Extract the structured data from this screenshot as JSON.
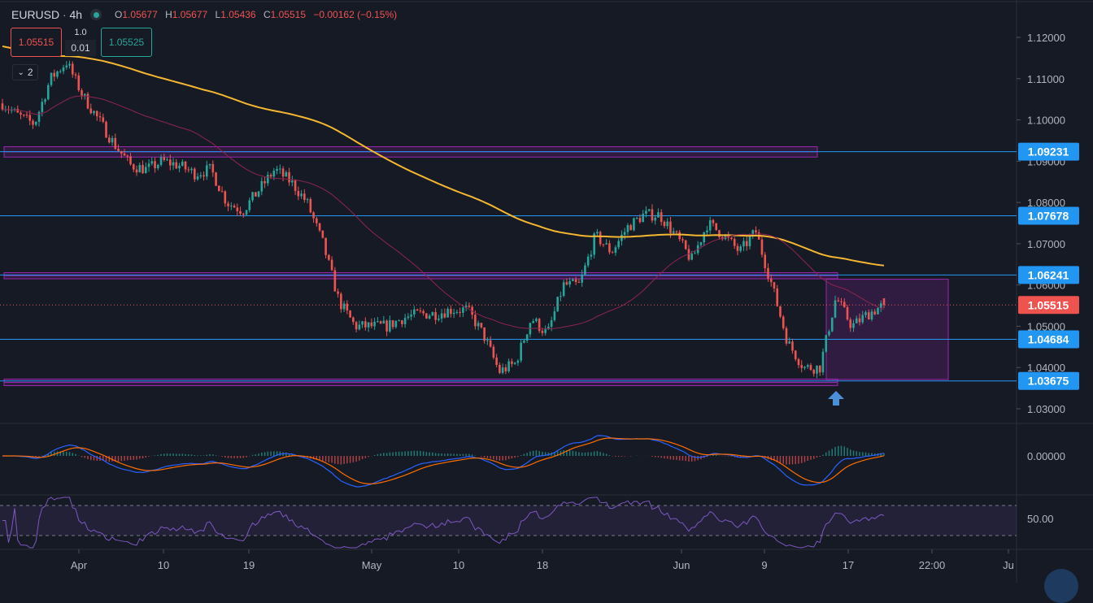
{
  "header": {
    "symbol": "EURUSD",
    "separator": "·",
    "interval": "4h",
    "market_status": "open",
    "ohlc": {
      "o_label": "O",
      "o": "1.05677",
      "h_label": "H",
      "h": "1.05677",
      "l_label": "L",
      "l": "1.05436",
      "c_label": "C",
      "c": "1.05515",
      "change": "−0.00162 (−0.15%)"
    }
  },
  "trade": {
    "sell_price": "1.05515",
    "quantity": "1.0",
    "spread": "0.01",
    "buy_price": "1.05525"
  },
  "indicators_toggle": {
    "icon": "chevron-down-icon",
    "count": "2"
  },
  "colors": {
    "up": "#26a69a",
    "down": "#ef5350",
    "ema": "#f5b731",
    "sma": "#8e2451",
    "level": "#2196f3",
    "zone": "#9c27b0",
    "macd": "#2962ff",
    "signal": "#ff6d00",
    "rsi": "#7e57c2",
    "background": "#161a25"
  },
  "chart_data": {
    "type": "candlestick",
    "symbol": "EURUSD",
    "interval": "4h",
    "ylim": [
      1.03,
      1.12
    ],
    "y_ticks": [
      "1.12000",
      "1.11000",
      "1.10000",
      "1.09000",
      "1.08000",
      "1.07000",
      "1.06000",
      "1.05000",
      "1.04000",
      "1.03000"
    ],
    "x_ticks": [
      "Apr",
      "10",
      "19",
      "May",
      "10",
      "18",
      "Jun",
      "9",
      "17",
      "22:00",
      "Ju"
    ],
    "close_path": [
      1.104,
      1.101,
      1.099,
      1.11,
      1.114,
      1.106,
      1.1,
      1.094,
      1.089,
      1.088,
      1.09,
      1.089,
      1.087,
      1.088,
      1.08,
      1.078,
      1.083,
      1.088,
      1.085,
      1.08,
      1.07,
      1.056,
      1.05,
      1.05,
      1.05,
      1.052,
      1.053,
      1.053,
      1.054,
      1.054,
      1.048,
      1.039,
      1.041,
      1.052,
      1.048,
      1.06,
      1.06,
      1.072,
      1.068,
      1.074,
      1.077,
      1.077,
      1.072,
      1.066,
      1.075,
      1.072,
      1.068,
      1.073,
      1.06,
      1.046,
      1.04,
      1.04,
      1.057,
      1.05,
      1.053,
      1.05515
    ],
    "last_bar": {
      "open": 1.05677,
      "high": 1.05677,
      "low": 1.05436,
      "close": 1.05515
    },
    "last_price_label": "1.05515",
    "horizontal_levels": [
      {
        "price": 1.09231,
        "label": "1.09231"
      },
      {
        "price": 1.07678,
        "label": "1.07678"
      },
      {
        "price": 1.06241,
        "label": "1.06241"
      },
      {
        "price": 1.04684,
        "label": "1.04684"
      },
      {
        "price": 1.03675,
        "label": "1.03675"
      }
    ],
    "zones": [
      {
        "top": 1.0935,
        "bottom": 1.091
      },
      {
        "top": 1.063,
        "bottom": 1.0615
      },
      {
        "top": 1.0372,
        "bottom": 1.0356
      }
    ],
    "range_box": {
      "top": 1.0614,
      "bottom": 1.0371
    },
    "moving_averages": [
      {
        "type": "EMA",
        "period": 200
      },
      {
        "type": "SMA",
        "period": 50
      }
    ],
    "macd": {
      "fast": 12,
      "slow": 26,
      "signal": 9,
      "tick_label": "0.00000"
    },
    "rsi": {
      "period": 14,
      "upper": 70,
      "lower": 30,
      "tick_label": "50.00"
    },
    "annotation": {
      "icon": "arrow-up-icon"
    }
  }
}
